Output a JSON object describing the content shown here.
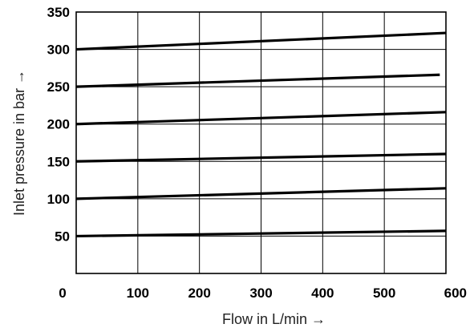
{
  "chart_data": {
    "type": "line",
    "xlabel": "Flow in L/min →",
    "ylabel": "Inlet pressure in bar →",
    "xlim": [
      0,
      600
    ],
    "ylim": [
      0,
      350
    ],
    "x_ticks": [
      "0",
      "100",
      "200",
      "300",
      "400",
      "500",
      "600"
    ],
    "y_ticks": [
      "50",
      "100",
      "150",
      "200",
      "250",
      "300",
      "350"
    ],
    "grid": true,
    "series": [
      {
        "x": [
          0,
          600
        ],
        "y": [
          300,
          322
        ]
      },
      {
        "x": [
          0,
          590
        ],
        "y": [
          250,
          266
        ]
      },
      {
        "x": [
          0,
          600
        ],
        "y": [
          200,
          216
        ]
      },
      {
        "x": [
          0,
          600
        ],
        "y": [
          150,
          160
        ]
      },
      {
        "x": [
          0,
          600
        ],
        "y": [
          100,
          114
        ]
      },
      {
        "x": [
          0,
          600
        ],
        "y": [
          50,
          57
        ]
      }
    ]
  }
}
